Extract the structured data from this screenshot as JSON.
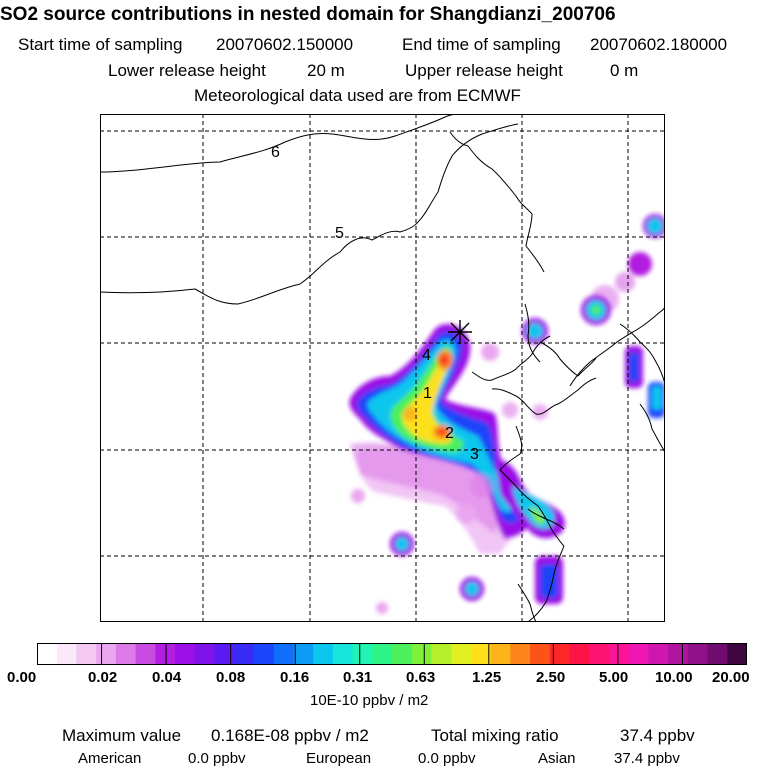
{
  "header": {
    "title": "SO2 source contributions in nested domain for Shangdianzi_200706",
    "start_label": "Start time of sampling",
    "start_value": "20070602.150000",
    "end_label": "End time of sampling",
    "end_value": "20070602.180000",
    "lower_label": "Lower release height",
    "lower_value": "20 m",
    "upper_label": "Upper release height",
    "upper_value": "0 m",
    "met_line": "Meteorological data used are from ECMWF"
  },
  "map": {
    "region_labels": [
      "1",
      "2",
      "3",
      "4",
      "5",
      "6"
    ],
    "receptor_symbol": "receptor-star"
  },
  "colorbar": {
    "tick_labels": [
      "0.00",
      "0.02",
      "0.04",
      "0.08",
      "0.16",
      "0.31",
      "0.63",
      "1.25",
      "2.50",
      "5.00",
      "10.00",
      "20.00"
    ],
    "unit": "10E-10 ppbv / m2",
    "colors": [
      "#ffffff",
      "#fbe9fb",
      "#f3c8f3",
      "#eaa6ef",
      "#dc7be8",
      "#c94ce2",
      "#b31fe0",
      "#9a10e6",
      "#7f14ea",
      "#5a1af0",
      "#3a2cf6",
      "#1c44fa",
      "#0f6ffa",
      "#0c9cf6",
      "#0cc6ee",
      "#16e6dc",
      "#22f4b4",
      "#2ef486",
      "#4cf05a",
      "#7ef03a",
      "#b4f02a",
      "#e0f020",
      "#fce01a",
      "#fcb41a",
      "#fc8418",
      "#fc5418",
      "#fc2828",
      "#fc1448",
      "#fc1470",
      "#fc1496",
      "#f016b4",
      "#d016b0",
      "#b0149e",
      "#90108a",
      "#700c70",
      "#400640"
    ]
  },
  "footer": {
    "max_label": "Maximum value",
    "max_value": "0.168E-08 ppbv / m2",
    "total_label": "Total mixing ratio",
    "total_value": "37.4 ppbv",
    "american_label": "American",
    "american_value": "0.0 ppbv",
    "european_label": "European",
    "european_value": "0.0 ppbv",
    "asian_label": "Asian",
    "asian_value": "37.4 ppbv"
  }
}
